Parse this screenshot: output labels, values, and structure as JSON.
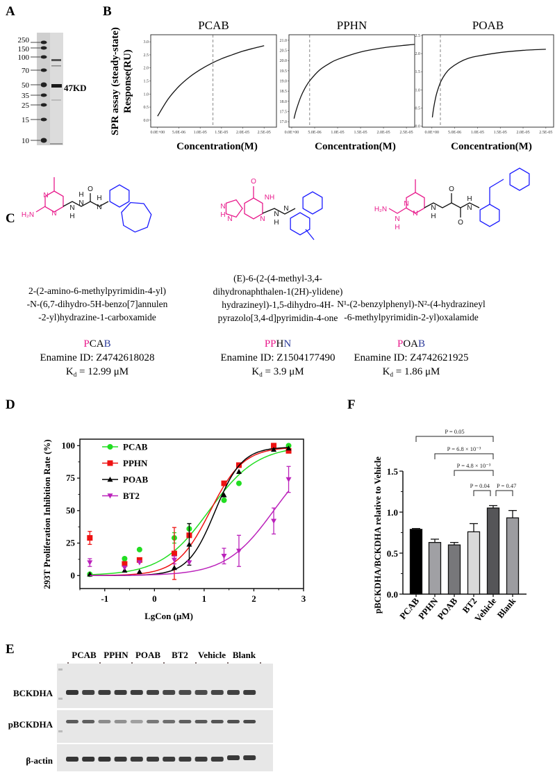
{
  "panel_labels": {
    "a": "A",
    "b": "B",
    "c": "C",
    "d": "D",
    "e": "E",
    "f": "F"
  },
  "gel": {
    "markers": [
      "250",
      "150",
      "100",
      "70",
      "50",
      "35",
      "25",
      "15",
      "10"
    ],
    "band_label": "47KD"
  },
  "spr_ylabel": [
    "SPR assay (steady-state)",
    "Response(RU)"
  ],
  "chart_data": [
    {
      "type": "line",
      "title": "PCAB",
      "xlabel": "Concentration(M)",
      "xlim": [
        -1.6e-06,
        2.79e-05
      ],
      "ylim": [
        -0.27,
        3.27
      ],
      "xticks": [
        0,
        5e-06,
        1e-05,
        1.5e-05,
        2e-05,
        2.5e-05
      ],
      "xtick_labels": [
        "0.0E+00",
        "5.0E-06",
        "1.0E-05",
        "1.5E-05",
        "2.0E-05",
        "2.5E-05"
      ],
      "yticks": [
        0,
        0.5,
        1,
        1.5,
        2,
        2.5,
        3
      ],
      "ytick_labels": [
        "0.0",
        "0.5",
        "1.0",
        "1.5",
        "2.0",
        "2.5",
        "3.0"
      ],
      "kd_line": 1.299e-05,
      "x": [
        0,
        2.5e-06,
        5e-06,
        7.5e-06,
        1e-05,
        1.25e-05,
        1.5e-05,
        1.75e-05,
        2e-05,
        2.25e-05,
        2.5e-05
      ],
      "y": [
        0.15,
        0.81,
        1.29,
        1.65,
        1.93,
        2.16,
        2.35,
        2.5,
        2.64,
        2.75,
        2.85
      ]
    },
    {
      "type": "line",
      "title": "PPHN",
      "xlabel": "Concentration(M)",
      "xlim": [
        -6e-07,
        2.68e-05
      ],
      "ylim": [
        16.73,
        21.27
      ],
      "xticks": [
        0,
        5e-06,
        1e-05,
        1.5e-05,
        2e-05,
        2.5e-05
      ],
      "xtick_labels": [
        "0.0E+00",
        "5.0E-06",
        "1.0E-05",
        "1.5E-05",
        "2.0E-05",
        "2.5E-05"
      ],
      "yticks": [
        17,
        17.5,
        18,
        18.5,
        19,
        19.5,
        20,
        20.5,
        21
      ],
      "ytick_labels": [
        "17.0",
        "17.5",
        "18.0",
        "18.5",
        "19.0",
        "19.5",
        "20.0",
        "20.5",
        "21.0"
      ],
      "kd_line": 3.9e-06,
      "x": [
        5e-07,
        1e-06,
        2e-06,
        3e-06,
        4e-06,
        6e-06,
        8e-06,
        1e-05,
        1.5e-05,
        2e-05,
        2.5e-05,
        2.75e-05
      ],
      "y": [
        17.15,
        17.58,
        18.23,
        18.69,
        19.03,
        19.52,
        19.83,
        20.06,
        20.42,
        20.63,
        20.76,
        20.81
      ]
    },
    {
      "type": "line",
      "title": "POAB",
      "xlabel": "Concentration(M)",
      "xlim": [
        -2.1e-06,
        2.67e-05
      ],
      "ylim": [
        -0.03,
        2.52
      ],
      "xticks": [
        0,
        5e-06,
        1e-05,
        1.5e-05,
        2e-05,
        2.5e-05
      ],
      "xtick_labels": [
        "0.0E+00",
        "5.0E-06",
        "1.0E-05",
        "1.5E-05",
        "2.0E-05",
        "2.5E-05"
      ],
      "yticks": [
        0,
        0.5,
        1,
        1.5,
        2,
        2.5
      ],
      "ytick_labels": [
        "0.0",
        "0.5",
        "1.0",
        "1.5",
        "2.0",
        "2.5"
      ],
      "kd_line": 1.86e-06,
      "x": [
        1e-07,
        3e-07,
        6e-07,
        1e-06,
        1.5e-06,
        2e-06,
        3e-06,
        4e-06,
        6e-06,
        8e-06,
        1e-05,
        1.5e-05,
        2e-05,
        2.5e-05
      ],
      "y": [
        0.24,
        0.43,
        0.65,
        0.88,
        1.08,
        1.24,
        1.45,
        1.59,
        1.76,
        1.87,
        1.93,
        2.03,
        2.09,
        2.12
      ]
    },
    {
      "type": "scatter",
      "xlabel": "LgCon (μM)",
      "ylabel": "293T Proliferation Inhibition Rate (%)",
      "xlim": [
        -1.5,
        3
      ],
      "ylim": [
        -10,
        105
      ],
      "xticks": [
        -1,
        0,
        1,
        2,
        3
      ],
      "xtick_labels": [
        "-1",
        "0",
        "1",
        "2",
        "3"
      ],
      "yticks": [
        0,
        25,
        50,
        75,
        100
      ],
      "ytick_labels": [
        "0",
        "25",
        "50",
        "75",
        "100"
      ],
      "legend": "top-left",
      "x": [
        -1.3,
        -0.6,
        -0.3,
        0.4,
        0.7,
        1.4,
        1.7,
        2.4,
        2.7
      ],
      "series": [
        {
          "name": "PCAB",
          "color": "#22dd22",
          "marker": "circle",
          "values": [
            1,
            13,
            20,
            29,
            36,
            58,
            71,
            100,
            100
          ],
          "errors": [
            0,
            0,
            0,
            4,
            4,
            0,
            0,
            0,
            0
          ],
          "fit": {
            "bottom": 0,
            "top": 100,
            "logEC50": 1.1,
            "hill": 0.9
          }
        },
        {
          "name": "PPHN",
          "color": "#ee1111",
          "marker": "square",
          "values": [
            29,
            9,
            12,
            17,
            31,
            71,
            85,
            100,
            96
          ],
          "errors": [
            5,
            0,
            0,
            20,
            0,
            0,
            0,
            0,
            0
          ],
          "fit": {
            "bottom": 0,
            "top": 99,
            "logEC50": 1.12,
            "hill": 1.3
          }
        },
        {
          "name": "POAB",
          "color": "#000000",
          "marker": "triangle",
          "values": [
            1,
            4,
            3,
            6,
            24,
            62,
            80,
            97,
            98
          ],
          "errors": [
            0,
            0,
            0,
            0,
            16,
            0,
            0,
            0,
            0
          ],
          "fit": {
            "bottom": 0,
            "top": 99,
            "logEC50": 1.22,
            "hill": 1.6
          }
        },
        {
          "name": "BT2",
          "color": "#bb22bb",
          "marker": "triangle-down",
          "values": [
            10,
            6,
            10,
            12,
            10,
            15,
            19,
            42,
            74
          ],
          "errors": [
            3,
            0,
            0,
            3,
            0,
            6,
            12,
            10,
            10
          ],
          "fit": {
            "bottom": 0,
            "top": 100,
            "logEC50": 2.4,
            "hill": 0.9
          }
        }
      ]
    },
    {
      "type": "bar",
      "ylabel": "pBCKDHA/BCKDHA relative to Vehicle",
      "ylim": [
        0,
        1.5
      ],
      "yticks": [
        0,
        0.5,
        1,
        1.5
      ],
      "ytick_labels": [
        "0.0",
        "0.5",
        "1.0",
        "1.5"
      ],
      "categories": [
        "PCAB",
        "PPHN",
        "POAB",
        "BT2",
        "Vehicle",
        "Blank"
      ],
      "values": [
        0.79,
        0.63,
        0.6,
        0.76,
        1.05,
        0.93
      ],
      "errors": [
        0.01,
        0.04,
        0.03,
        0.1,
        0.03,
        0.09
      ],
      "colors": [
        "#000000",
        "#a0a0a4",
        "#77777a",
        "#d9d9d9",
        "#555558",
        "#9c9ca0"
      ],
      "comparisons": [
        {
          "from": "PCAB",
          "to": "Vehicle",
          "label": "P = 0.05"
        },
        {
          "from": "PPHN",
          "to": "Vehicle",
          "label": "P = 6.8 × 10⁻³"
        },
        {
          "from": "POAB",
          "to": "Vehicle",
          "label": "P = 4.8 × 10⁻³"
        },
        {
          "from": "BT2",
          "to": "Vehicle",
          "label": "P = 0.04"
        },
        {
          "from": "Vehicle",
          "to": "Blank",
          "label": "P = 0.47"
        }
      ]
    }
  ],
  "compounds": [
    {
      "name_lines": [
        "2-(2-amino-6-methylpyrimidin-4-yl)",
        "-N-(6,7-dihydro-5H-benzo[7]annulen",
        "-2-yl)hydrazine-1-carboxamide"
      ],
      "code_parts": [
        {
          "text": "P",
          "color": "#e8198b"
        },
        {
          "text": "CA",
          "color": "#000000"
        },
        {
          "text": "B",
          "color": "#2b3a9a"
        }
      ],
      "enamine": "Enamine ID: Z4742618028",
      "kd_k": "K",
      "kd_sub": "d",
      "kd_value": " = 12.99 μM",
      "atoms": [
        "H₂N",
        "N",
        "N",
        "N",
        "H",
        "N",
        "H",
        "O",
        "N",
        "H"
      ]
    },
    {
      "name_lines": [
        "(E)-6-(2-(4-methyl-3,4-",
        "dihydronaphthalen-1(2H)-ylidene)",
        "hydrazineyl)-1,5-dihydro-4H-",
        "pyrazolo[3,4-d]pyrimidin-4-one"
      ],
      "code_parts": [
        {
          "text": "PP",
          "color": "#e8198b"
        },
        {
          "text": "H",
          "color": "#000000"
        },
        {
          "text": "N",
          "color": "#2b3a9a"
        }
      ],
      "enamine": "Enamine ID: Z1504177490",
      "kd_k": "K",
      "kd_sub": "d",
      "kd_value": " = 3.9 μM",
      "atoms": [
        "O",
        "NH",
        "N",
        "N",
        "N",
        "H",
        "N",
        "N",
        "H"
      ]
    },
    {
      "name_lines": [
        "N¹-(2-benzylphenyl)-N²-(4-hydrazineyl",
        "-6-methylpyrimidin-2-yl)oxalamide"
      ],
      "code_parts": [
        {
          "text": "P",
          "color": "#e8198b"
        },
        {
          "text": "OA",
          "color": "#000000"
        },
        {
          "text": "B",
          "color": "#2b3a9a"
        }
      ],
      "enamine": "Enamine ID: Z4742621925",
      "kd_k": "K",
      "kd_sub": "d",
      "kd_value": " = 1.86 μM",
      "atoms": [
        "H₂N",
        "N",
        "H",
        "N",
        "N",
        "N",
        "H",
        "O",
        "O",
        "N",
        "H"
      ]
    }
  ],
  "blot": {
    "groups": [
      "PCAB",
      "PPHN",
      "POAB",
      "BT2",
      "Vehicle",
      "Blank"
    ],
    "rows": [
      "BCKDHA",
      "pBCKDHA",
      "β-actin"
    ]
  },
  "colors": {
    "magenta": "#e8198b",
    "blue": "#1a1aff",
    "navy": "#2b3a9a"
  }
}
